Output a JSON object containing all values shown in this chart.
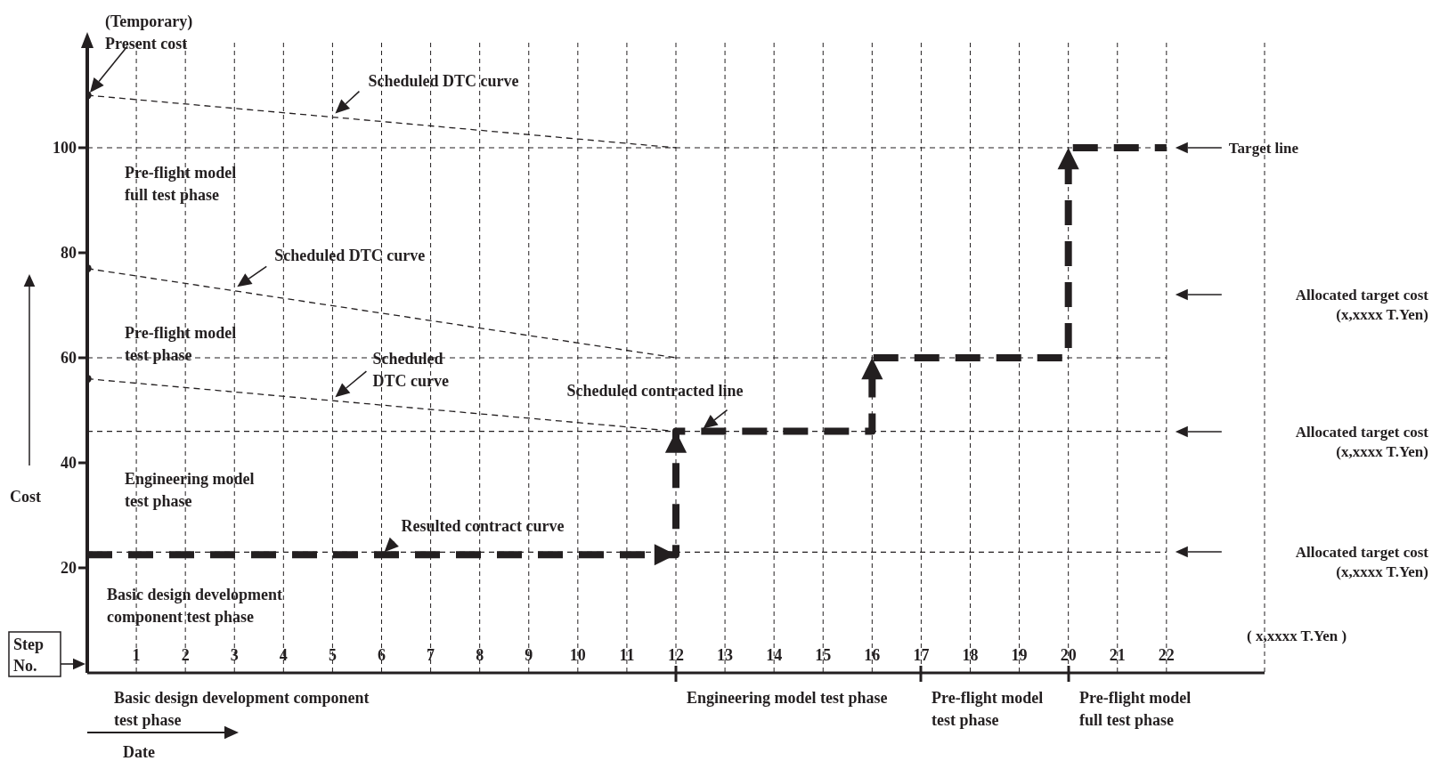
{
  "chart_data": {
    "type": "line",
    "xlabel": "( x,xxxx  T.Yen )",
    "ylabel": "Cost",
    "xlim": [
      0,
      24
    ],
    "xticks": [
      1,
      2,
      3,
      4,
      5,
      6,
      7,
      8,
      9,
      10,
      11,
      12,
      13,
      14,
      15,
      16,
      17,
      18,
      19,
      20,
      21,
      22
    ],
    "ylim": [
      0,
      120
    ],
    "yticks": [
      20,
      40,
      60,
      80,
      100
    ],
    "grid": "x",
    "series": [
      {
        "color": "#231f20",
        "line_style": "dashed",
        "marker": "none",
        "x": [
          0,
          12,
          12,
          16,
          16,
          20,
          20,
          22
        ],
        "values": [
          22.5,
          22.5,
          46,
          46,
          60,
          60,
          100,
          100
        ]
      },
      {
        "color": "#231f20",
        "line_style": "dashed",
        "marker": "none",
        "x": [
          0,
          12
        ],
        "values": [
          110,
          100
        ]
      },
      {
        "color": "#231f20",
        "line_style": "dashed",
        "marker": "none",
        "x": [
          0,
          12
        ],
        "values": [
          77,
          60
        ]
      },
      {
        "color": "#231f20",
        "line_style": "dashed",
        "marker": "none",
        "x": [
          0,
          12
        ],
        "values": [
          56,
          46
        ]
      },
      {
        "type": "scatter",
        "color": "#231f20",
        "marker": "circle",
        "x": [
          0,
          0,
          0
        ],
        "values": [
          110,
          77,
          56
        ]
      }
    ],
    "ref_lines": [
      {
        "axis": "y",
        "value": 100,
        "line_style": "dashed"
      },
      {
        "axis": "y",
        "value": 60,
        "line_style": "dashed"
      },
      {
        "axis": "y",
        "value": 46,
        "line_style": "dashed"
      },
      {
        "axis": "y",
        "value": 23,
        "line_style": "dashed"
      }
    ],
    "annotations": [
      {
        "text": "(Temporary)\nPresent cost",
        "x": 0,
        "y": 110
      },
      {
        "text": "Scheduled DTC curve",
        "x": 5,
        "y": 106
      },
      {
        "text": "Scheduled DTC curve",
        "x": 3,
        "y": 73
      },
      {
        "text": "Scheduled\nDTC curve",
        "x": 5,
        "y": 52
      },
      {
        "text": "Scheduled contracted line",
        "x": 12.5,
        "y": 46
      },
      {
        "text": "Resulted contract curve",
        "x": 6,
        "y": 22.5
      },
      "Pre-flight model\nfull test phase",
      "Pre-flight model\ntest phase",
      "Engineering model\ntest phase",
      "Basic design development\ncomponent test phase",
      "Allocated target cost\n(x,xxxx T.Yen)",
      "Step\nNo.",
      "Date",
      "Basic design development component\ntest phase",
      "Engineering model test phase",
      "Pre-flight model\ntest phase",
      "Pre-flight model\nfull test phase",
      "Target line",
      "Allocated target cost\n(x,xxxx T.Yen)",
      "Allocated target cost\n(x,xxxx T.Yen)"
    ]
  }
}
